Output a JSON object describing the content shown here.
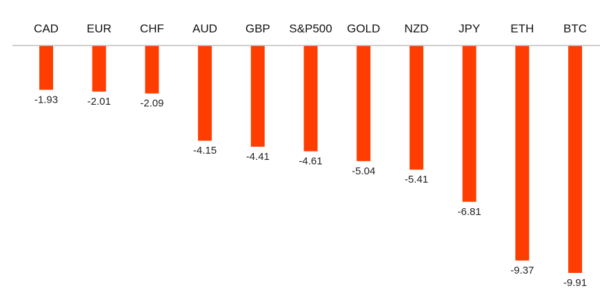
{
  "chart_data": {
    "type": "bar",
    "categories": [
      "CAD",
      "EUR",
      "CHF",
      "AUD",
      "GBP",
      "S&P500",
      "GOLD",
      "NZD",
      "JPY",
      "ETH",
      "BTC"
    ],
    "values": [
      -1.93,
      -2.01,
      -2.09,
      -4.15,
      -4.41,
      -4.61,
      -5.04,
      -5.41,
      -6.81,
      -9.37,
      -9.91
    ],
    "value_labels": [
      "-1.93",
      "-2.01",
      "-2.09",
      "-4.15",
      "-4.41",
      "-4.61",
      "-5.04",
      "-5.41",
      "-6.81",
      "-9.37",
      "-9.91"
    ],
    "title": "",
    "xlabel": "",
    "ylabel": "",
    "ylim": [
      -10,
      0
    ],
    "category_axis_position": "top",
    "grid": false,
    "legend": "none",
    "bar_color": "#ff3d00",
    "axis_color": "#bfbfbf"
  }
}
